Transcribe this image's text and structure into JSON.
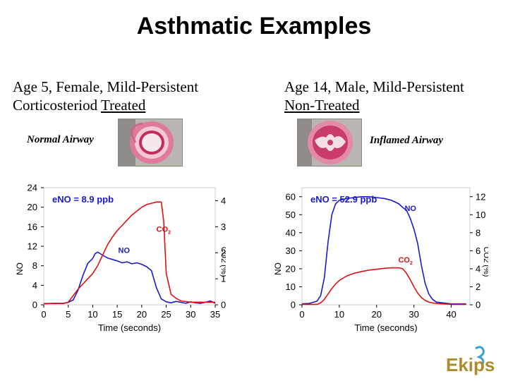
{
  "title": "Asthmatic Examples",
  "cases": [
    {
      "line1": "Age 5, Female, Mild-Persistent",
      "line2_prefix": "Corticosteriod ",
      "line2_underlined": "Treated",
      "airway_label": "Normal Airway"
    },
    {
      "line1": "Age 14, Male, Mild-Persistent",
      "line2_prefix": "",
      "line2_underlined": "Non-Treated",
      "airway_label": "Inflamed Airway"
    }
  ],
  "colors": {
    "no": "#1a1acc",
    "co2": "#dd1111",
    "annotation": "#1a1acc"
  },
  "logo_text": "Ekips",
  "chart_data": [
    {
      "type": "line",
      "annotation": "eNO = 8.9 ppb",
      "xlabel": "Time (seconds)",
      "left_axis_label": "NO",
      "right_axis_label": "CO2 (%)",
      "xlim": [
        0,
        35
      ],
      "ylim_left": [
        0,
        24
      ],
      "ylim_right": [
        0,
        4.5
      ],
      "x_ticks": [
        0,
        5,
        10,
        15,
        20,
        25,
        30,
        35
      ],
      "y_ticks_left": [
        0,
        4,
        8,
        12,
        16,
        20,
        24
      ],
      "y_ticks_right": [
        0,
        1,
        2,
        3,
        4
      ],
      "series": [
        {
          "name": "NO",
          "axis": "left",
          "x": [
            0,
            2,
            4,
            5,
            6,
            7,
            8,
            9,
            10,
            10.5,
            11,
            12,
            13,
            14,
            15,
            16,
            17,
            18,
            19,
            20,
            21,
            22,
            23,
            24,
            25,
            26,
            27,
            28,
            29,
            30,
            31,
            32,
            33,
            34,
            35
          ],
          "y": [
            0.2,
            0.3,
            0.3,
            0.5,
            1.0,
            3.0,
            6.0,
            8.5,
            9.5,
            10.5,
            10.8,
            10.2,
            9.6,
            9.3,
            9.0,
            8.6,
            8.8,
            8.4,
            8.6,
            8.3,
            7.8,
            7.0,
            3.5,
            1.2,
            0.6,
            0.4,
            0.7,
            0.5,
            0.3,
            0.6,
            0.4,
            0.3,
            0.5,
            0.8,
            0.3
          ]
        },
        {
          "name": "CO2",
          "axis": "right",
          "x": [
            0,
            2,
            4,
            5,
            6,
            7,
            8,
            9,
            10,
            11,
            12,
            13,
            14,
            15,
            16,
            17,
            18,
            19,
            20,
            21,
            22,
            23,
            24,
            24.5,
            25,
            26,
            27,
            28,
            30,
            32,
            35
          ],
          "y": [
            0.05,
            0.05,
            0.05,
            0.1,
            0.35,
            0.6,
            0.8,
            1.0,
            1.2,
            1.5,
            1.9,
            2.3,
            2.6,
            2.85,
            3.05,
            3.25,
            3.45,
            3.6,
            3.75,
            3.85,
            3.9,
            3.95,
            3.95,
            3.2,
            1.2,
            0.4,
            0.25,
            0.15,
            0.1,
            0.1,
            0.1
          ]
        }
      ],
      "series_labels": [
        {
          "text": "NO",
          "at": [
            15.2,
            10.6
          ]
        },
        {
          "text": "CO",
          "sub": "2",
          "at": [
            23.0,
            15.0
          ]
        }
      ]
    },
    {
      "type": "line",
      "annotation": "eNO = 52.9 ppb",
      "xlabel": "Time (seconds)",
      "left_axis_label": "NO",
      "right_axis_label": "CO2 (%)",
      "xlim": [
        0,
        45
      ],
      "ylim_left": [
        0,
        65
      ],
      "ylim_right": [
        0,
        13
      ],
      "x_ticks": [
        0,
        10,
        20,
        30,
        40
      ],
      "y_ticks_left": [
        0,
        10,
        20,
        30,
        40,
        50,
        60
      ],
      "y_ticks_right": [
        0,
        2,
        4,
        6,
        8,
        10,
        12
      ],
      "series": [
        {
          "name": "NO",
          "axis": "left",
          "x": [
            0,
            2,
            4,
            5,
            6,
            7,
            8,
            9,
            10,
            12,
            14,
            16,
            18,
            20,
            22,
            24,
            26,
            27,
            28,
            29,
            30,
            31,
            32,
            33,
            34,
            35,
            36,
            38,
            40,
            42,
            44
          ],
          "y": [
            0.5,
            0.8,
            2.0,
            5.0,
            15.0,
            35.0,
            50.0,
            56.0,
            58.0,
            59.0,
            59.5,
            60.0,
            60.0,
            59.5,
            59.0,
            58.0,
            56.0,
            54.0,
            52.5,
            48.0,
            42.0,
            34.0,
            22.0,
            12.0,
            6.0,
            3.0,
            1.5,
            1.0,
            0.5,
            0.5,
            0.5
          ]
        },
        {
          "name": "CO2",
          "axis": "right",
          "x": [
            0,
            4,
            5,
            6,
            7,
            8,
            9,
            10,
            12,
            14,
            16,
            18,
            20,
            22,
            24,
            26,
            27,
            28,
            29,
            30,
            31,
            32,
            33,
            34,
            35,
            36,
            38,
            40,
            44
          ],
          "y": [
            0.05,
            0.05,
            0.2,
            0.6,
            1.2,
            1.8,
            2.3,
            2.7,
            3.2,
            3.5,
            3.7,
            3.85,
            3.95,
            4.05,
            4.1,
            4.1,
            4.0,
            3.5,
            2.8,
            2.0,
            1.3,
            0.8,
            0.5,
            0.3,
            0.2,
            0.15,
            0.1,
            0.05,
            0.05
          ]
        }
      ],
      "series_labels": [
        {
          "text": "NO",
          "at": [
            27.5,
            52.0
          ]
        },
        {
          "text": "CO",
          "sub": "2",
          "at": [
            25.8,
            23.5
          ]
        }
      ]
    }
  ]
}
